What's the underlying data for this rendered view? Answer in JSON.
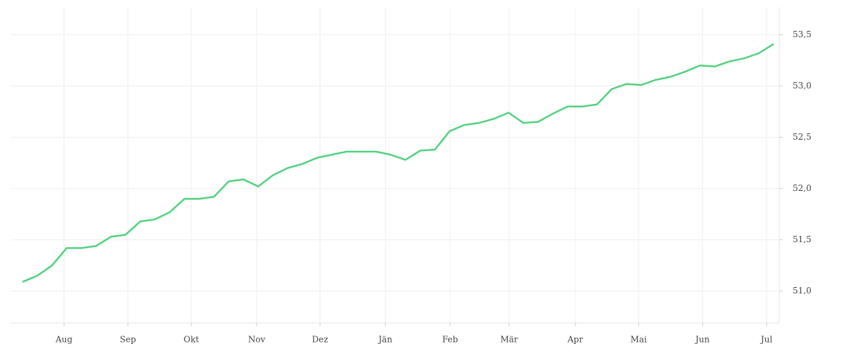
{
  "chart_data": {
    "type": "line",
    "x": [
      0,
      1,
      2,
      3,
      4,
      5,
      6,
      7,
      8,
      9,
      10,
      11,
      12,
      13,
      14,
      15,
      16,
      17,
      18,
      19,
      20,
      21,
      22,
      23,
      24,
      25,
      26,
      27,
      28,
      29,
      30,
      31,
      32,
      33,
      34,
      35,
      36,
      37,
      38,
      39,
      40,
      41,
      42,
      43,
      44,
      45,
      46,
      47,
      48,
      49,
      50,
      51
    ],
    "series": [
      {
        "color": "#52d17e",
        "values": [
          51.09,
          51.15,
          51.25,
          51.42,
          51.42,
          51.44,
          51.53,
          51.55,
          51.68,
          51.7,
          51.77,
          51.9,
          51.9,
          51.92,
          52.07,
          52.09,
          52.02,
          52.13,
          52.2,
          52.24,
          52.3,
          52.33,
          52.36,
          52.36,
          52.36,
          52.33,
          52.28,
          52.37,
          52.38,
          52.56,
          52.62,
          52.64,
          52.68,
          52.74,
          52.64,
          52.65,
          52.73,
          52.8,
          52.8,
          52.82,
          52.97,
          53.02,
          53.01,
          53.06,
          53.09,
          53.14,
          53.2,
          53.19,
          53.24,
          53.27,
          53.32,
          53.41
        ]
      }
    ],
    "xlim": [
      -0.81,
      51.38
    ],
    "xticks": [
      {
        "value": 2.82,
        "label": "Aug"
      },
      {
        "value": 7.16,
        "label": "Sep"
      },
      {
        "value": 11.46,
        "label": "Okt"
      },
      {
        "value": 15.9,
        "label": "Nov"
      },
      {
        "value": 20.2,
        "label": "Dez"
      },
      {
        "value": 24.64,
        "label": "Jän"
      },
      {
        "value": 29.03,
        "label": "Feb"
      },
      {
        "value": 33.04,
        "label": "Mär"
      },
      {
        "value": 37.53,
        "label": "Apr"
      },
      {
        "value": 41.83,
        "label": "Mai"
      },
      {
        "value": 46.17,
        "label": "Jun"
      },
      {
        "value": 50.52,
        "label": "Jul"
      }
    ],
    "ylim": [
      50.69,
      53.77
    ],
    "yticks": [
      {
        "value": 51,
        "label": "51,0"
      },
      {
        "value": 51.5,
        "label": "51,5"
      },
      {
        "value": 52,
        "label": "52,0"
      },
      {
        "value": 52.5,
        "label": "52,5"
      },
      {
        "value": 53,
        "label": "53,0"
      },
      {
        "value": 53.5,
        "label": "53,5"
      }
    ],
    "grid": true
  }
}
